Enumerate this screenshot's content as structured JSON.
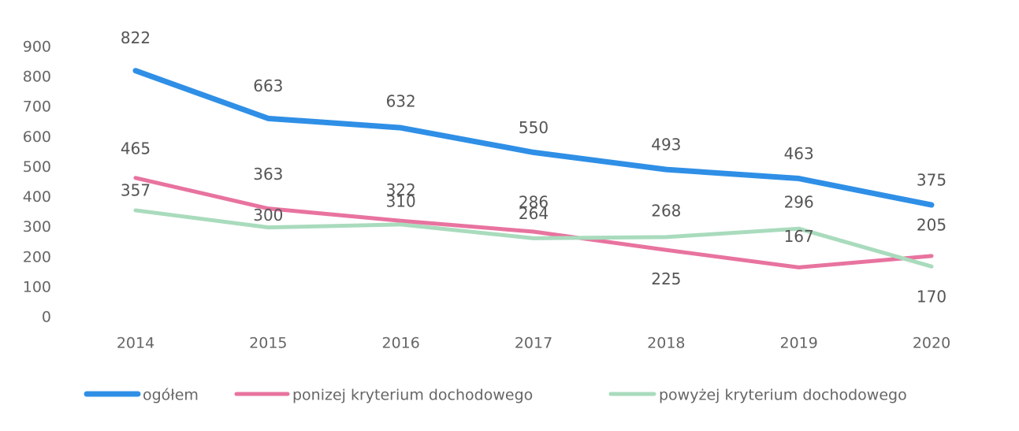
{
  "chart_data": {
    "type": "line",
    "categories": [
      "2014",
      "2015",
      "2016",
      "2017",
      "2018",
      "2019",
      "2020"
    ],
    "series": [
      {
        "name": "ogółem",
        "color": "#2f8fe6",
        "values": [
          822,
          663,
          632,
          550,
          493,
          463,
          375
        ]
      },
      {
        "name": "ponizej kryterium dochodowego",
        "color": "#e8739f",
        "values": [
          465,
          363,
          322,
          286,
          225,
          167,
          205
        ]
      },
      {
        "name": "powyżej kryterium dochodowego",
        "color": "#a9dbbd",
        "values": [
          357,
          300,
          310,
          264,
          268,
          296,
          170
        ]
      }
    ],
    "ylim": [
      0,
      900
    ],
    "yticks": [
      0,
      100,
      200,
      300,
      400,
      500,
      600,
      700,
      800,
      900
    ],
    "grid": false,
    "legend": "bottom",
    "data_labels": true
  }
}
